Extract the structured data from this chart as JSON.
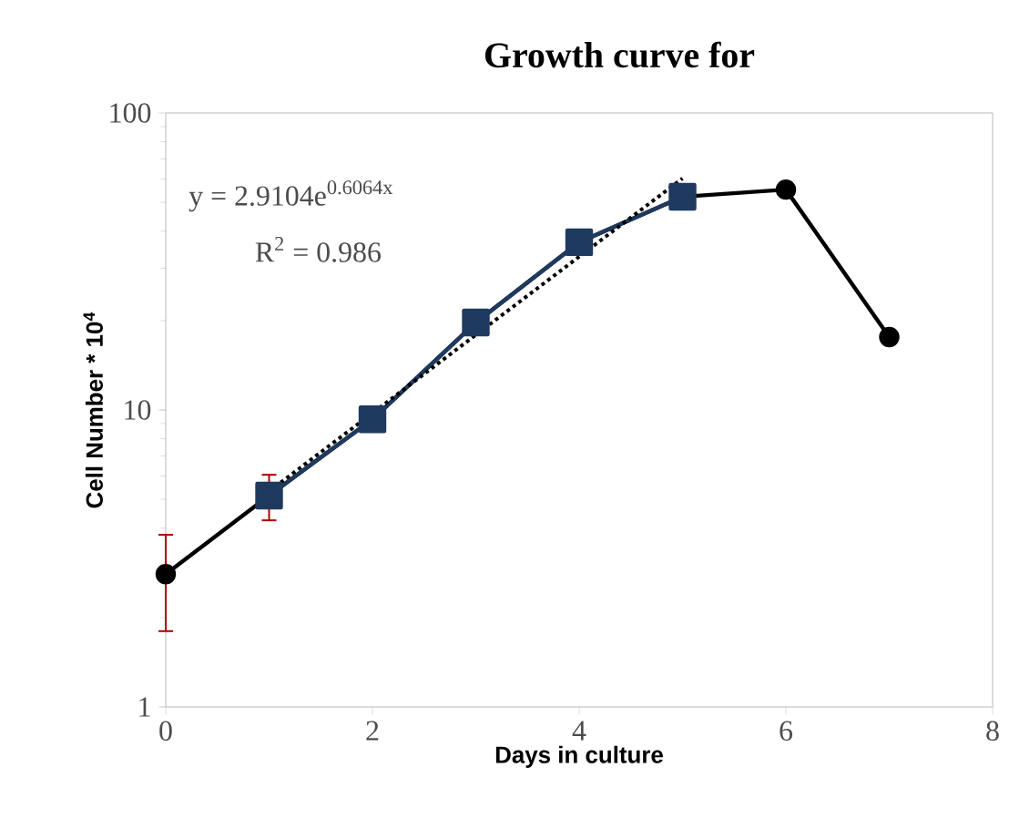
{
  "chart_data": {
    "type": "line",
    "title": "Growth curve for",
    "xlabel": "Days in culture",
    "ylabel": "Cell Number  * 10$^{4}$",
    "log": "y",
    "xlim": [
      0,
      8
    ],
    "xticks": [
      0,
      2,
      4,
      6,
      8
    ],
    "ylim": [
      1,
      100
    ],
    "yticks": [
      1,
      10,
      100
    ],
    "annotations": [
      "y = 2.9104e$^{0.6064x}$",
      "R$^{2}$ = 0.986"
    ],
    "series": [
      {
        "color": "#000000",
        "marker": "circle",
        "x": [
          0,
          1,
          2,
          3,
          4,
          5,
          6,
          7
        ],
        "values": [
          2.8,
          5.15,
          9.3,
          19.7,
          36.7,
          52.2,
          55.2,
          17.6
        ],
        "errors": [
          1,
          0.9,
          null,
          null,
          null,
          null,
          null,
          null
        ]
      },
      {
        "color": "#1f3a5f",
        "marker": "square",
        "x": [
          1,
          2,
          3,
          4,
          5
        ],
        "values": [
          5.15,
          9.3,
          19.7,
          36.7,
          52.2
        ]
      },
      {
        "color": "#000000",
        "marker": "none",
        "line_style": "dotted",
        "x": [
          1,
          5
        ],
        "values": [
          5.32,
          60.2
        ]
      }
    ]
  }
}
